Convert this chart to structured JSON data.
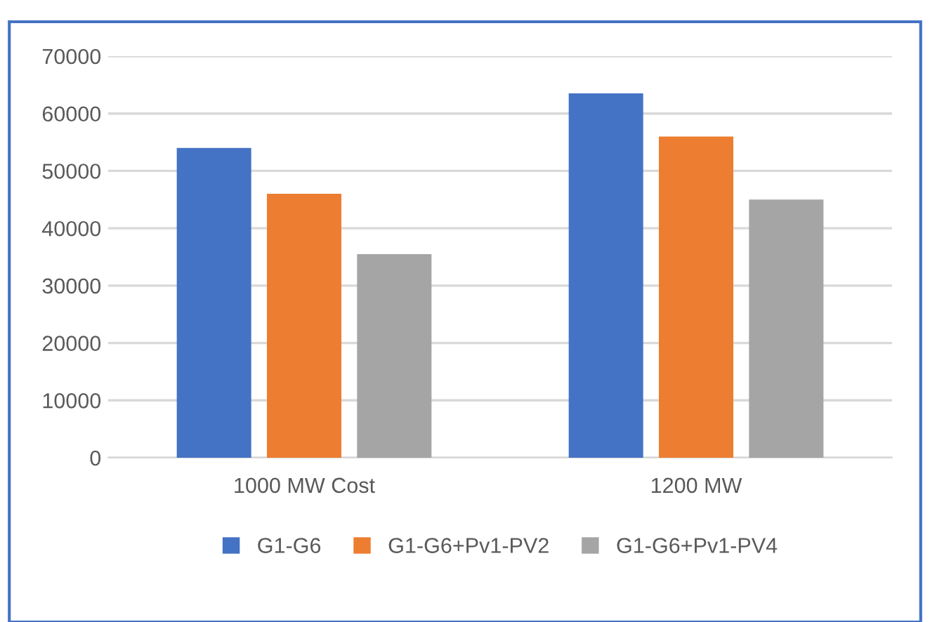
{
  "chart_data": {
    "type": "bar",
    "categories": [
      "1000 MW Cost",
      "1200 MW"
    ],
    "series": [
      {
        "name": "G1-G6",
        "color": "#4472c4",
        "values": [
          54000,
          63500
        ]
      },
      {
        "name": "G1-G6+Pv1-PV2",
        "color": "#ed7d31",
        "values": [
          46000,
          56000
        ]
      },
      {
        "name": "G1-G6+Pv1-PV4",
        "color": "#a5a5a5",
        "values": [
          35500,
          45000
        ]
      }
    ],
    "ylim": [
      0,
      70000
    ],
    "yticks": [
      0,
      10000,
      20000,
      30000,
      40000,
      50000,
      60000,
      70000
    ],
    "grid": "y",
    "legend": "bottom"
  }
}
